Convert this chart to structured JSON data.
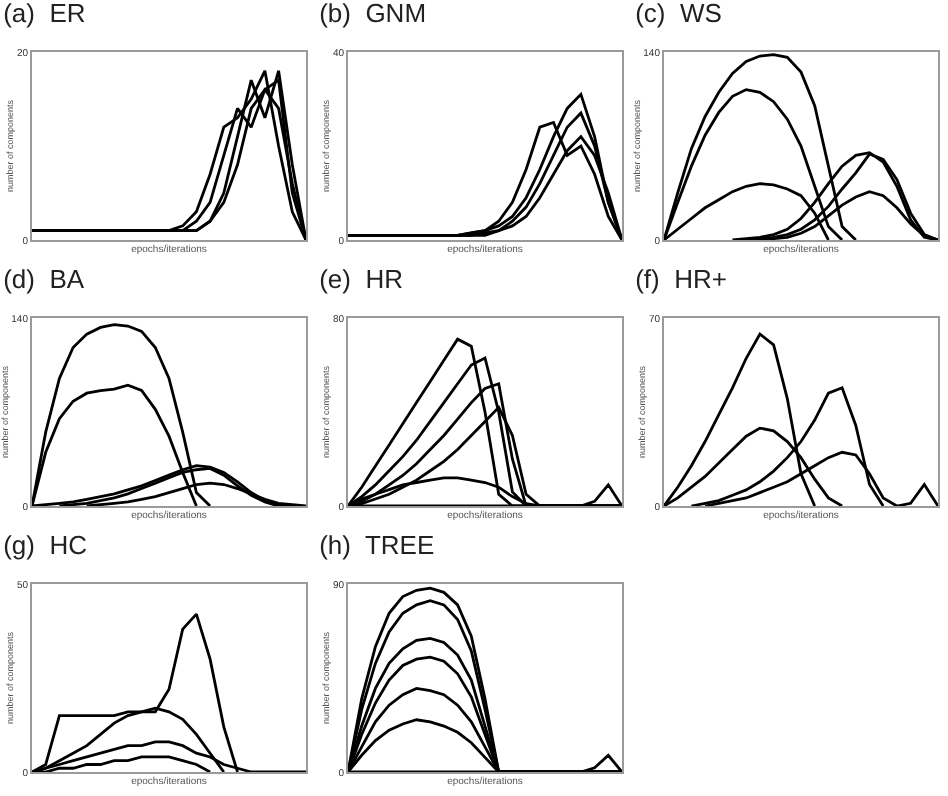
{
  "chart_data": [
    {
      "type": "line",
      "title": "(a)  ER",
      "xlabel": "epochs/iterations",
      "ylabel": "number of components",
      "tick_labels": "y",
      "ylim": [
        0,
        20
      ],
      "yticks": [
        0,
        20
      ],
      "categories": [
        null,
        null,
        null,
        null,
        null,
        null,
        null,
        null,
        null,
        null,
        null,
        null,
        null,
        null,
        null,
        null,
        null,
        null,
        null,
        null,
        null
      ],
      "series": [
        {
          "color": "#000000",
          "values": [
            1,
            1,
            1,
            1,
            1,
            1,
            1,
            1,
            1,
            1,
            1,
            1,
            1,
            2,
            5,
            11,
            17,
            13,
            18,
            8,
            0
          ]
        },
        {
          "color": "#000000",
          "values": [
            1,
            1,
            1,
            1,
            1,
            1,
            1,
            1,
            1,
            1,
            1,
            1,
            2,
            4,
            9,
            14,
            12,
            16,
            17,
            5,
            0
          ]
        },
        {
          "color": "#000000",
          "values": [
            1,
            1,
            1,
            1,
            1,
            1,
            1,
            1,
            1,
            1,
            1,
            1.5,
            3,
            7,
            12,
            13,
            15,
            18,
            10,
            3,
            0
          ]
        },
        {
          "color": "#000000",
          "values": [
            1,
            1,
            1,
            1,
            1,
            1,
            1,
            1,
            1,
            1,
            1,
            1,
            1,
            2,
            4,
            8,
            14,
            16,
            14,
            6,
            0
          ]
        }
      ]
    },
    {
      "type": "line",
      "title": "(b)  GNM",
      "xlabel": "epochs/iterations",
      "ylabel": "number of components",
      "tick_labels": "y",
      "ylim": [
        0,
        40
      ],
      "yticks": [
        0,
        40
      ],
      "categories": [
        null,
        null,
        null,
        null,
        null,
        null,
        null,
        null,
        null,
        null,
        null,
        null,
        null,
        null,
        null,
        null,
        null,
        null,
        null,
        null,
        null
      ],
      "series": [
        {
          "color": "#000000",
          "values": [
            1,
            1,
            1,
            1,
            1,
            1,
            1,
            1,
            1,
            1.5,
            2,
            3,
            5,
            9,
            15,
            22,
            28,
            31,
            22,
            8,
            0
          ]
        },
        {
          "color": "#000000",
          "values": [
            1,
            1,
            1,
            1,
            1,
            1,
            1,
            1,
            1,
            1.5,
            2,
            4,
            8,
            15,
            24,
            25,
            18,
            20,
            14,
            5,
            0
          ]
        },
        {
          "color": "#000000",
          "values": [
            1,
            1,
            1,
            1,
            1,
            1,
            1,
            1,
            1,
            1,
            1.5,
            2,
            4,
            7,
            12,
            18,
            24,
            27,
            20,
            8,
            0
          ]
        },
        {
          "color": "#000000",
          "values": [
            1,
            1,
            1,
            1,
            1,
            1,
            1,
            1,
            1,
            1,
            1,
            2,
            3,
            5,
            9,
            14,
            19,
            22,
            18,
            10,
            0
          ]
        }
      ]
    },
    {
      "type": "line",
      "title": "(c)  WS",
      "xlabel": "epochs/iterations",
      "ylabel": "number of components",
      "tick_labels": "y",
      "ylim": [
        0,
        140
      ],
      "yticks": [
        0,
        140
      ],
      "categories": [
        null,
        null,
        null,
        null,
        null,
        null,
        null,
        null,
        null,
        null,
        null,
        null,
        null,
        null,
        null,
        null,
        null,
        null,
        null,
        null,
        null
      ],
      "series": [
        {
          "color": "#000000",
          "values": [
            0,
            35,
            68,
            92,
            110,
            124,
            133,
            137,
            138,
            136,
            125,
            100,
            55,
            10,
            0,
            null,
            null,
            null,
            null,
            null,
            null
          ]
        },
        {
          "color": "#000000",
          "values": [
            0,
            28,
            55,
            78,
            95,
            107,
            112,
            110,
            103,
            90,
            70,
            40,
            10,
            0,
            null,
            null,
            null,
            null,
            null,
            null,
            null
          ]
        },
        {
          "color": "#000000",
          "values": [
            0,
            8,
            16,
            24,
            30,
            36,
            40,
            42,
            41,
            38,
            33,
            20,
            0,
            null,
            null,
            null,
            null,
            null,
            null,
            null,
            null
          ]
        },
        {
          "color": "#000000",
          "values": [
            null,
            null,
            null,
            null,
            null,
            0,
            1,
            2,
            4,
            8,
            16,
            28,
            42,
            55,
            63,
            65,
            58,
            40,
            15,
            2,
            0
          ]
        },
        {
          "color": "#000000",
          "values": [
            null,
            null,
            null,
            null,
            null,
            null,
            0,
            1,
            2,
            4,
            8,
            15,
            25,
            38,
            50,
            64,
            60,
            45,
            20,
            4,
            0
          ]
        },
        {
          "color": "#000000",
          "values": [
            null,
            null,
            null,
            null,
            null,
            null,
            null,
            0,
            1,
            2,
            5,
            10,
            18,
            26,
            32,
            36,
            33,
            24,
            12,
            3,
            0
          ]
        }
      ]
    },
    {
      "type": "line",
      "title": "(d)  BA",
      "xlabel": "epochs/iterations",
      "ylabel": "number of components",
      "tick_labels": "y",
      "ylim": [
        0,
        140
      ],
      "yticks": [
        0,
        140
      ],
      "categories": [
        null,
        null,
        null,
        null,
        null,
        null,
        null,
        null,
        null,
        null,
        null,
        null,
        null,
        null,
        null,
        null,
        null,
        null,
        null,
        null,
        null
      ],
      "series": [
        {
          "color": "#000000",
          "values": [
            0,
            55,
            95,
            118,
            128,
            133,
            135,
            134,
            130,
            118,
            95,
            55,
            10,
            0,
            null,
            null,
            null,
            null,
            null,
            null,
            null
          ]
        },
        {
          "color": "#000000",
          "values": [
            0,
            40,
            65,
            78,
            84,
            86,
            87,
            90,
            86,
            72,
            52,
            25,
            0,
            null,
            null,
            null,
            null,
            null,
            null,
            null,
            null
          ]
        },
        {
          "color": "#000000",
          "values": [
            0,
            1,
            2,
            3,
            5,
            7,
            9,
            12,
            15,
            19,
            23,
            27,
            30,
            29,
            25,
            18,
            10,
            4,
            1,
            0,
            null
          ]
        },
        {
          "color": "#000000",
          "values": [
            null,
            null,
            0,
            1,
            2,
            4,
            6,
            9,
            13,
            17,
            21,
            25,
            27,
            28,
            23,
            15,
            8,
            3,
            0,
            null,
            null
          ]
        },
        {
          "color": "#000000",
          "values": [
            null,
            null,
            null,
            null,
            0,
            1,
            2,
            3,
            5,
            7,
            10,
            13,
            16,
            17,
            16,
            13,
            9,
            5,
            2,
            1,
            0
          ]
        }
      ]
    },
    {
      "type": "line",
      "title": "(e)  HR",
      "xlabel": "epochs/iterations",
      "ylabel": "number of components",
      "tick_labels": "y",
      "ylim": [
        0,
        80
      ],
      "yticks": [
        0,
        80
      ],
      "categories": [
        null,
        null,
        null,
        null,
        null,
        null,
        null,
        null,
        null,
        null,
        null,
        null,
        null,
        null,
        null,
        null,
        null,
        null,
        null,
        null,
        null
      ],
      "series": [
        {
          "color": "#000000",
          "values": [
            0,
            8,
            17,
            26,
            35,
            44,
            53,
            62,
            71,
            68,
            40,
            5,
            0,
            0,
            0,
            0,
            0,
            0,
            0,
            0,
            0
          ]
        },
        {
          "color": "#000000",
          "values": [
            0,
            4,
            9,
            15,
            21,
            28,
            36,
            44,
            52,
            60,
            63,
            40,
            6,
            0,
            0,
            0,
            0,
            0,
            0,
            0,
            0
          ]
        },
        {
          "color": "#000000",
          "values": [
            0,
            2,
            5,
            9,
            13,
            18,
            24,
            30,
            37,
            44,
            50,
            52,
            20,
            0,
            0,
            0,
            0,
            0,
            0,
            0,
            0
          ]
        },
        {
          "color": "#000000",
          "values": [
            0,
            1,
            3,
            5,
            8,
            11,
            15,
            19,
            24,
            30,
            36,
            42,
            30,
            5,
            0,
            0,
            0,
            0,
            0,
            0,
            0
          ]
        },
        {
          "color": "#000000",
          "values": [
            0,
            3,
            5,
            7,
            9,
            10,
            11,
            12,
            12,
            11,
            10,
            8,
            4,
            1,
            0,
            0,
            0,
            0,
            0,
            0,
            0
          ]
        },
        {
          "color": "#000000",
          "values": [
            0,
            0,
            0,
            0,
            0,
            0,
            0,
            0,
            0,
            0,
            0,
            0,
            0,
            0,
            0,
            0,
            0,
            0,
            2,
            9,
            0
          ]
        }
      ]
    },
    {
      "type": "line",
      "title": "(f)  HR+",
      "xlabel": "epochs/iterations",
      "ylabel": "number of components",
      "tick_labels": "y",
      "ylim": [
        0,
        70
      ],
      "yticks": [
        0,
        70
      ],
      "categories": [
        null,
        null,
        null,
        null,
        null,
        null,
        null,
        null,
        null,
        null,
        null,
        null,
        null,
        null,
        null,
        null,
        null,
        null,
        null,
        null,
        null
      ],
      "series": [
        {
          "color": "#000000",
          "values": [
            0,
            7,
            15,
            24,
            34,
            44,
            55,
            64,
            60,
            40,
            12,
            0,
            null,
            null,
            null,
            null,
            null,
            null,
            null,
            null,
            null
          ]
        },
        {
          "color": "#000000",
          "values": [
            null,
            null,
            0,
            1,
            2,
            4,
            6,
            9,
            13,
            18,
            24,
            32,
            42,
            44,
            30,
            8,
            0,
            null,
            null,
            null,
            null
          ]
        },
        {
          "color": "#000000",
          "values": [
            0,
            3,
            7,
            11,
            16,
            21,
            26,
            29,
            28,
            24,
            18,
            10,
            3,
            0,
            null,
            null,
            null,
            null,
            null,
            null,
            null
          ]
        },
        {
          "color": "#000000",
          "values": [
            null,
            null,
            null,
            0,
            1,
            2,
            3,
            5,
            7,
            9,
            12,
            15,
            18,
            20,
            19,
            12,
            3,
            0,
            null,
            null,
            null
          ]
        },
        {
          "color": "#000000",
          "values": [
            null,
            null,
            null,
            null,
            null,
            null,
            null,
            null,
            null,
            null,
            null,
            null,
            null,
            null,
            null,
            null,
            null,
            0,
            1,
            8,
            0
          ]
        }
      ]
    },
    {
      "type": "line",
      "title": "(g)  HC",
      "xlabel": "epochs/iterations",
      "ylabel": "number of components",
      "tick_labels": "y",
      "ylim": [
        0,
        50
      ],
      "yticks": [
        0,
        50
      ],
      "categories": [
        null,
        null,
        null,
        null,
        null,
        null,
        null,
        null,
        null,
        null,
        null,
        null,
        null,
        null,
        null,
        null,
        null,
        null,
        null,
        null,
        null
      ],
      "series": [
        {
          "color": "#000000",
          "values": [
            0,
            2,
            15,
            15,
            15,
            15,
            15,
            16,
            16,
            16,
            22,
            38,
            42,
            30,
            12,
            0,
            null,
            null,
            null,
            null,
            null
          ]
        },
        {
          "color": "#000000",
          "values": [
            0,
            1,
            3,
            5,
            7,
            10,
            13,
            15,
            16,
            17,
            16,
            14,
            10,
            5,
            0,
            null,
            null,
            null,
            null,
            null,
            null
          ]
        },
        {
          "color": "#000000",
          "values": [
            0,
            1,
            2,
            3,
            4,
            5,
            6,
            7,
            7,
            8,
            8,
            7,
            5,
            4,
            2,
            1,
            0,
            0,
            0,
            0,
            0
          ]
        },
        {
          "color": "#000000",
          "values": [
            0,
            0,
            1,
            1,
            2,
            2,
            3,
            3,
            4,
            4,
            4,
            3,
            2,
            0,
            null,
            null,
            null,
            null,
            null,
            null,
            null
          ]
        }
      ]
    },
    {
      "type": "line",
      "title": "(h)  TREE",
      "xlabel": "epochs/iterations",
      "ylabel": "number of components",
      "tick_labels": "y",
      "ylim": [
        0,
        90
      ],
      "yticks": [
        0,
        90
      ],
      "categories": [
        null,
        null,
        null,
        null,
        null,
        null,
        null,
        null,
        null,
        null,
        null,
        null,
        null,
        null,
        null,
        null,
        null,
        null,
        null,
        null,
        null
      ],
      "series": [
        {
          "color": "#000000",
          "values": [
            0,
            35,
            60,
            76,
            84,
            87,
            88,
            86,
            80,
            65,
            35,
            0,
            0,
            0,
            0,
            0,
            0,
            0,
            0,
            0,
            0
          ]
        },
        {
          "color": "#000000",
          "values": [
            0,
            30,
            52,
            67,
            76,
            80,
            82,
            80,
            73,
            58,
            30,
            0,
            0,
            0,
            0,
            0,
            0,
            0,
            0,
            0,
            0
          ]
        },
        {
          "color": "#000000",
          "values": [
            0,
            22,
            40,
            52,
            59,
            63,
            64,
            62,
            56,
            44,
            22,
            0,
            0,
            0,
            0,
            0,
            0,
            0,
            0,
            0,
            0
          ]
        },
        {
          "color": "#000000",
          "values": [
            0,
            18,
            33,
            44,
            51,
            54,
            55,
            53,
            47,
            36,
            18,
            0,
            0,
            0,
            0,
            0,
            0,
            0,
            0,
            0,
            0
          ]
        },
        {
          "color": "#000000",
          "values": [
            0,
            12,
            24,
            32,
            37,
            40,
            39,
            37,
            32,
            24,
            12,
            0,
            0,
            0,
            0,
            0,
            0,
            0,
            0,
            0,
            0
          ]
        },
        {
          "color": "#000000",
          "values": [
            0,
            8,
            15,
            20,
            23,
            25,
            24,
            22,
            19,
            14,
            7,
            0,
            0,
            0,
            0,
            0,
            0,
            0,
            0,
            0,
            0
          ]
        },
        {
          "color": "#000000",
          "values": [
            0,
            0,
            0,
            0,
            0,
            0,
            0,
            0,
            0,
            0,
            0,
            0,
            0,
            0,
            0,
            0,
            0,
            0,
            2,
            8,
            0
          ]
        }
      ]
    }
  ]
}
